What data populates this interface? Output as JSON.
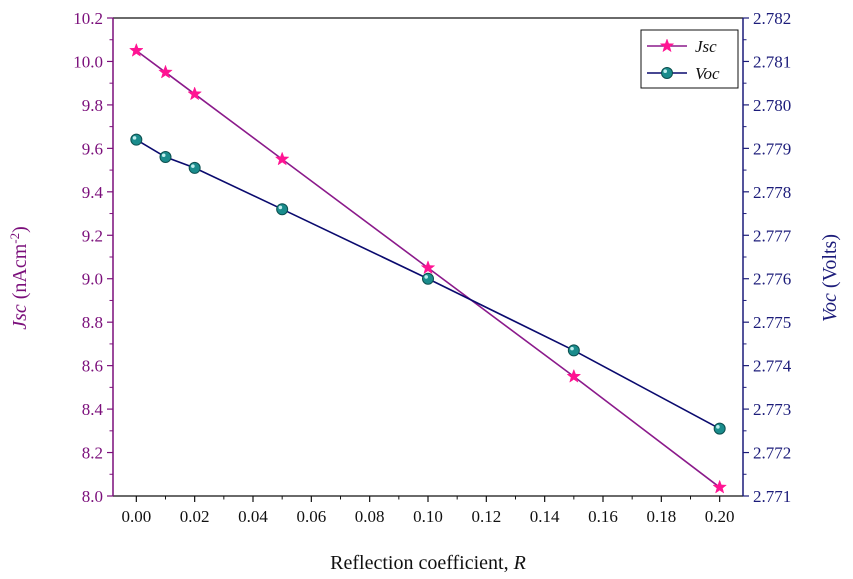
{
  "chart_data": {
    "type": "line",
    "xlabel": "Reflection coefficient, ",
    "xlabel_var": "R",
    "ylabel_left_var": "Jsc",
    "ylabel_left": " (nAcm",
    "ylabel_left_sup": "-2",
    "ylabel_left_end": ")",
    "ylabel_right_var": "Voc",
    "ylabel_right": " (Volts)",
    "xlim": [
      -0.008,
      0.208
    ],
    "ylim_left": [
      8.0,
      10.2
    ],
    "ylim_right": [
      2.771,
      2.782
    ],
    "x_ticks": [
      "0.00",
      "0.02",
      "0.04",
      "0.06",
      "0.08",
      "0.10",
      "0.12",
      "0.14",
      "0.16",
      "0.18",
      "0.20"
    ],
    "y_left_ticks": [
      "8.0",
      "8.2",
      "8.4",
      "8.6",
      "8.8",
      "9.0",
      "9.2",
      "9.4",
      "9.6",
      "9.8",
      "10.0",
      "10.2"
    ],
    "y_right_ticks": [
      "2.771",
      "2.772",
      "2.773",
      "2.774",
      "2.775",
      "2.776",
      "2.777",
      "2.778",
      "2.779",
      "2.780",
      "2.781",
      "2.782"
    ],
    "legend_position": "top-right",
    "series": [
      {
        "name": "Jsc",
        "axis": "left",
        "color": "#8b1a8b",
        "marker_color": "#ff1493",
        "marker": "star",
        "x": [
          0.0,
          0.01,
          0.02,
          0.05,
          0.1,
          0.15,
          0.2
        ],
        "y": [
          10.05,
          9.95,
          9.85,
          9.55,
          9.05,
          8.55,
          8.04
        ]
      },
      {
        "name": "Voc",
        "axis": "right",
        "color": "#0a0a6e",
        "marker_color": "#1a8c8c",
        "marker": "circle",
        "x": [
          0.0,
          0.01,
          0.02,
          0.05,
          0.1,
          0.15,
          0.2
        ],
        "y": [
          2.7792,
          2.7788,
          2.77855,
          2.7776,
          2.776,
          2.77435,
          2.77255
        ]
      }
    ]
  }
}
